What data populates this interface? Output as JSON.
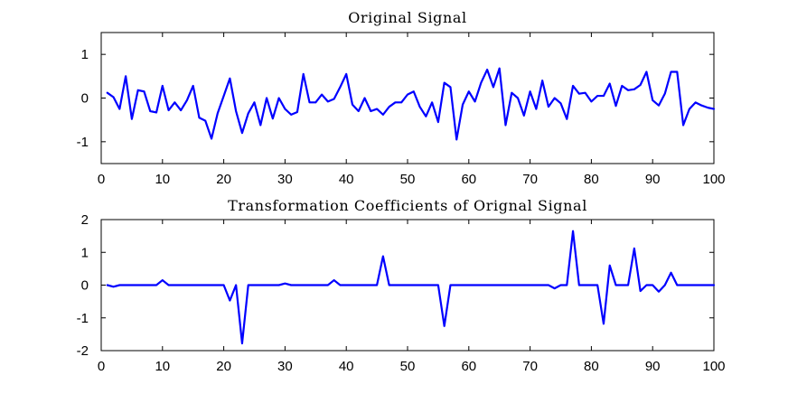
{
  "chart_data": [
    {
      "type": "line",
      "title": "Original Signal",
      "xlabel": "",
      "ylabel": "",
      "xlim": [
        0,
        100
      ],
      "ylim": [
        -1.5,
        1.5
      ],
      "xticks": [
        0,
        10,
        20,
        30,
        40,
        50,
        60,
        70,
        80,
        90,
        100
      ],
      "yticks": [
        -1,
        0,
        1
      ],
      "grid": false,
      "color": "#0000ff",
      "series": [
        {
          "x": [
            1,
            2,
            3,
            4,
            5,
            6,
            7,
            8,
            9,
            10,
            11,
            12,
            13,
            14,
            15,
            16,
            17,
            18,
            19,
            20,
            21,
            22,
            23,
            24,
            25,
            26,
            27,
            28,
            29,
            30,
            31,
            32,
            33,
            34,
            35,
            36,
            37,
            38,
            39,
            40,
            41,
            42,
            43,
            44,
            45,
            46,
            47,
            48,
            49,
            50,
            51,
            52,
            53,
            54,
            55,
            56,
            57,
            58,
            59,
            60,
            61,
            62,
            63,
            64,
            65,
            66,
            67,
            68,
            69,
            70,
            71,
            72,
            73,
            74,
            75,
            76,
            77,
            78,
            79,
            80,
            81,
            82,
            83,
            84,
            85,
            86,
            87,
            88,
            89,
            90,
            91,
            92,
            93,
            94,
            95,
            96,
            97,
            98,
            99,
            100
          ],
          "values": [
            0.12,
            0.02,
            -0.25,
            0.5,
            -0.48,
            0.18,
            0.15,
            -0.3,
            -0.33,
            0.28,
            -0.28,
            -0.1,
            -0.28,
            -0.05,
            0.28,
            -0.45,
            -0.52,
            -0.93,
            -0.35,
            0.05,
            0.45,
            -0.3,
            -0.8,
            -0.35,
            -0.1,
            -0.62,
            0.0,
            -0.47,
            0.0,
            -0.25,
            -0.38,
            -0.32,
            0.55,
            -0.1,
            -0.1,
            0.08,
            -0.08,
            -0.02,
            0.25,
            0.55,
            -0.15,
            -0.3,
            0.0,
            -0.3,
            -0.25,
            -0.38,
            -0.2,
            -0.1,
            -0.1,
            0.08,
            0.15,
            -0.2,
            -0.42,
            -0.1,
            -0.55,
            0.35,
            0.25,
            -0.95,
            -0.15,
            0.15,
            -0.08,
            0.35,
            0.65,
            0.25,
            0.68,
            -0.62,
            0.12,
            0.0,
            -0.4,
            0.15,
            -0.25,
            0.4,
            -0.2,
            0.0,
            -0.12,
            -0.48,
            0.28,
            0.1,
            0.12,
            -0.08,
            0.05,
            0.05,
            0.33,
            -0.18,
            0.28,
            0.18,
            0.2,
            0.3,
            0.6,
            -0.05,
            -0.17,
            0.1,
            0.6,
            0.6,
            -0.62,
            -0.25,
            -0.1,
            -0.17,
            -0.22,
            -0.25
          ]
        }
      ]
    },
    {
      "type": "line",
      "title": "Transformation Coefficients of Orignal Signal",
      "xlabel": "",
      "ylabel": "",
      "xlim": [
        0,
        100
      ],
      "ylim": [
        -2,
        2
      ],
      "xticks": [
        0,
        10,
        20,
        30,
        40,
        50,
        60,
        70,
        80,
        90,
        100
      ],
      "yticks": [
        -2,
        -1,
        0,
        1,
        2
      ],
      "grid": false,
      "color": "#0000ff",
      "series": [
        {
          "x": [
            1,
            2,
            3,
            4,
            5,
            6,
            7,
            8,
            9,
            10,
            11,
            12,
            13,
            14,
            15,
            16,
            17,
            18,
            19,
            20,
            21,
            22,
            23,
            24,
            25,
            26,
            27,
            28,
            29,
            30,
            31,
            32,
            33,
            34,
            35,
            36,
            37,
            38,
            39,
            40,
            41,
            42,
            43,
            44,
            45,
            46,
            47,
            48,
            49,
            50,
            51,
            52,
            53,
            54,
            55,
            56,
            57,
            58,
            59,
            60,
            61,
            62,
            63,
            64,
            65,
            66,
            67,
            68,
            69,
            70,
            71,
            72,
            73,
            74,
            75,
            76,
            77,
            78,
            79,
            80,
            81,
            82,
            83,
            84,
            85,
            86,
            87,
            88,
            89,
            90,
            91,
            92,
            93,
            94,
            95,
            96,
            97,
            98,
            99,
            100
          ],
          "values": [
            0,
            -0.05,
            0,
            0,
            0,
            0,
            0,
            0,
            0,
            0.15,
            0,
            0,
            0,
            0,
            0,
            0,
            0,
            0,
            0,
            0,
            -0.47,
            0,
            -1.78,
            0,
            0,
            0,
            0,
            0,
            0,
            0.05,
            0,
            0,
            0,
            0,
            0,
            0,
            0,
            0.15,
            0,
            0,
            0,
            0,
            0,
            0,
            0,
            0.88,
            0,
            0,
            0,
            0,
            0,
            0,
            0,
            0,
            0,
            -1.25,
            0,
            0,
            0,
            0,
            0,
            0,
            0,
            0,
            0,
            0,
            0,
            0,
            0,
            0,
            0,
            0,
            0,
            -0.1,
            0,
            0,
            1.65,
            0,
            0,
            0,
            0,
            -1.18,
            0.6,
            0,
            0,
            0,
            1.12,
            -0.18,
            0,
            0,
            -0.2,
            0,
            0.38,
            0,
            0,
            0,
            0,
            0,
            0,
            0
          ]
        }
      ]
    }
  ]
}
